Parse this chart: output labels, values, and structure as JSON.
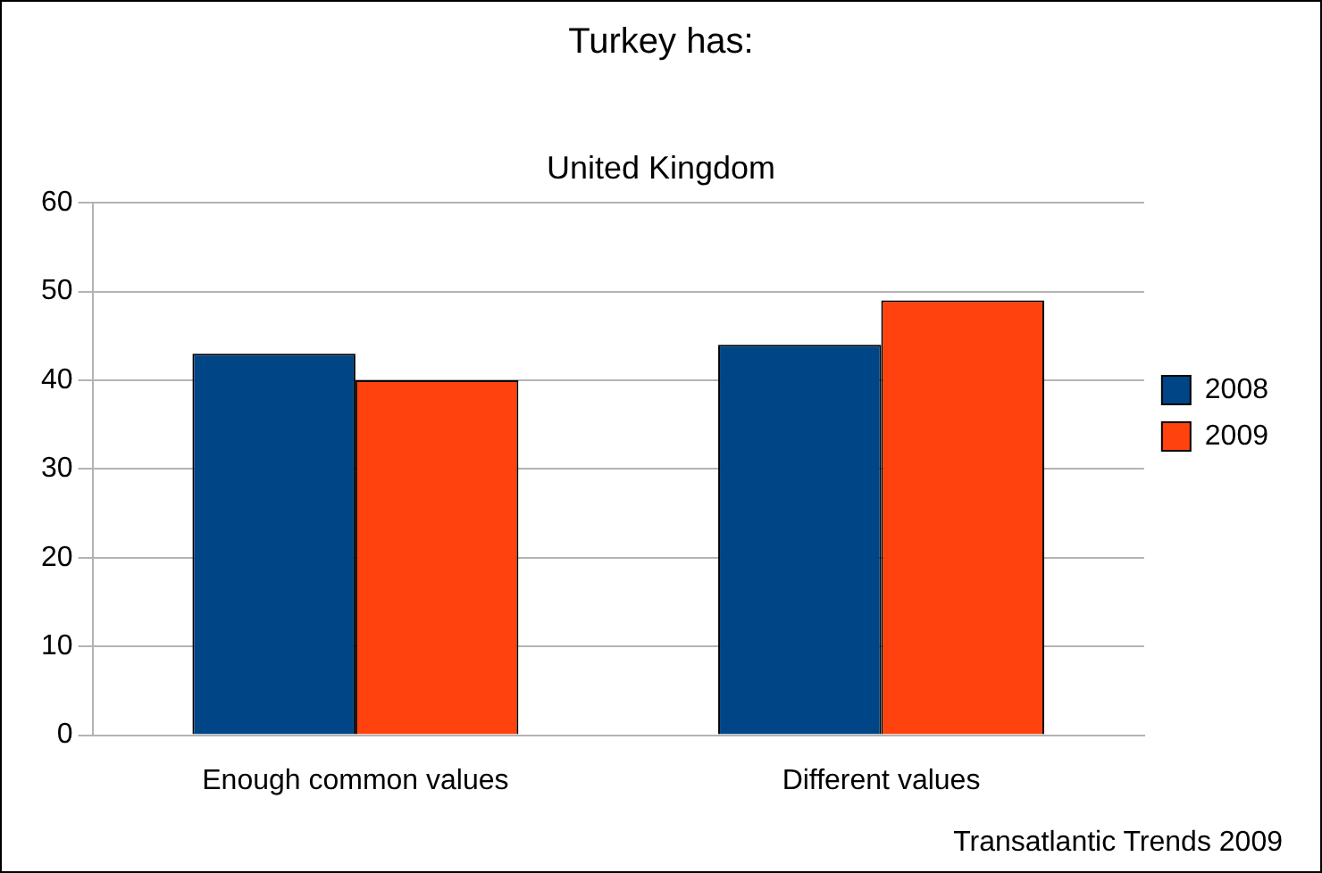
{
  "chart_data": {
    "type": "bar",
    "title": "Turkey has:",
    "subtitle": "United Kingdom",
    "categories": [
      "Enough common values",
      "Different values"
    ],
    "series": [
      {
        "name": "2008",
        "color": "#004586",
        "values": [
          43,
          44
        ]
      },
      {
        "name": "2009",
        "color": "#ff420e",
        "values": [
          40,
          49
        ]
      }
    ],
    "ylim": [
      0,
      60
    ],
    "yticks": [
      0,
      10,
      20,
      30,
      40,
      50,
      60
    ],
    "grid": "y",
    "legend": "right",
    "annotations": [
      "Transatlantic Trends 2009"
    ]
  }
}
